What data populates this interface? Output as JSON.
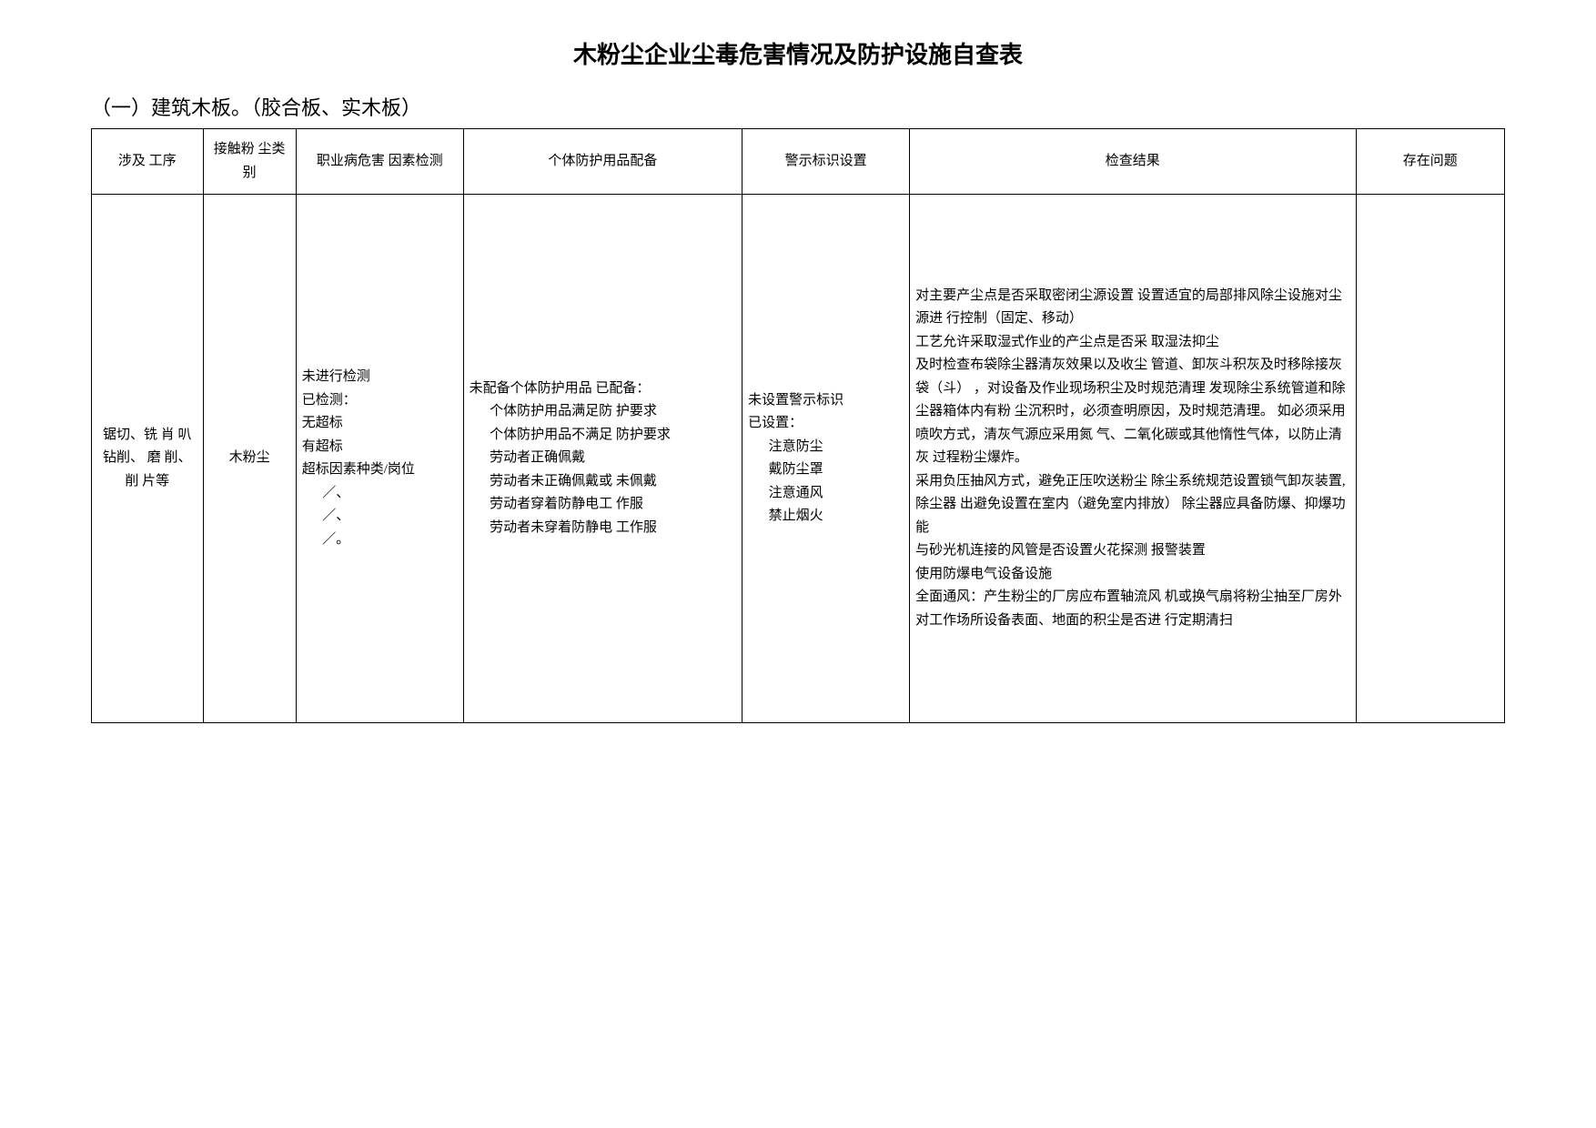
{
  "page": {
    "title": "木粉尘企业尘毒危害情况及防护设施自查表",
    "subtitle": "（一）建筑木板。（胶合板、实木板）",
    "headers": [
      "涉及 工序",
      "接触粉 尘类别",
      "职业病危害 因素检测",
      "个体防护用品配备",
      "警示标识设置",
      "检查结果",
      "存在问题"
    ],
    "row": {
      "process": "锯切、铣 肖 叭钻削、  磨 削、削 片等",
      "dustType": "木粉尘",
      "detection": {
        "l1": "未进行检测",
        "l2": "已检测：",
        "l3": "无超标",
        "l4": "有超标",
        "l5": "超标因素种类/岗位",
        "l6": "／、",
        "l7": "／、",
        "l8": "／。"
      },
      "ppe": {
        "l1": "未配备个体防护用品 已配备：",
        "l2": "个体防护用品满足防 护要求",
        "l3": "个体防护用品不满足 防护要求",
        "l4": "劳动者正确佩戴",
        "l5": "劳动者未正确佩戴或 未佩戴",
        "l6": "劳动者穿着防静电工 作服",
        "l7": "劳动者未穿着防静电 工作服"
      },
      "sign": {
        "l1": "未设置警示标识",
        "l2": "已设置：",
        "l3": "注意防尘",
        "l4": "戴防尘罩",
        "l5": "注意通风",
        "l6": "禁止烟火"
      },
      "result": {
        "l1": "对主要产尘点是否采取密闭尘源设置 设置适宜的局部排风除尘设施对尘源进 行控制（固定、移动）",
        "l2": "工艺允许采取湿式作业的产尘点是否采 取湿法抑尘",
        "l3": "及时检查布袋除尘器清灰效果以及收尘 管道、卸灰斗积灰及时移除接灰袋（斗） ，对设备及作业现场积尘及时规范清理  发现除尘系统管道和除尘器箱体内有粉  尘沉积时，必须查明原因，及时规范清理。  如必须采用喷吹方式，清灰气源应采用氮 气、二氧化碳或其他惰性气体，以防止清灰 过程粉尘爆炸。",
        "l4": "采用负压抽风方式，避免正压吹送粉尘 除尘系统规范设置锁气卸灰装置, 除尘器 出避免设置在室内（避免室内排放）  除尘器应具备防爆、抑爆功能",
        "l5": "与砂光机连接的风管是否设置火花探测 报警装置",
        "l6": "使用防爆电气设备设施",
        "l7": "全面通风：产生粉尘的厂房应布置轴流风 机或换气扇将粉尘抽至厂房外",
        "l8": "对工作场所设备表面、地面的积尘是否进 行定期清扫"
      },
      "issue": ""
    }
  }
}
